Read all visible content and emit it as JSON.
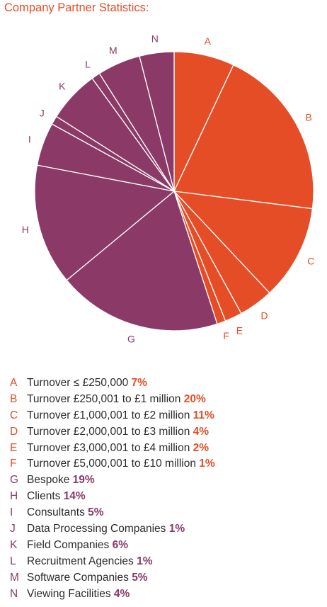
{
  "title": "Company Partner Statistics:",
  "colors": {
    "orange": "#e54d26",
    "purple": "#8b3a68"
  },
  "chart_data": {
    "type": "pie",
    "title": "Company Partner Statistics:",
    "slices": [
      {
        "letter": "A",
        "label": "Turnover ≤ £250,000",
        "value": 7,
        "pct_label": "7%",
        "group": "orange"
      },
      {
        "letter": "B",
        "label": "Turnover £250,001 to £1 million",
        "value": 20,
        "pct_label": "20%",
        "group": "orange"
      },
      {
        "letter": "C",
        "label": "Turnover £1,000,001 to £2 million",
        "value": 11,
        "pct_label": "11%",
        "group": "orange"
      },
      {
        "letter": "D",
        "label": "Turnover £2,000,001 to £3 million",
        "value": 4,
        "pct_label": "4%",
        "group": "orange"
      },
      {
        "letter": "E",
        "label": "Turnover £3,000,001 to £4 million",
        "value": 2,
        "pct_label": "2%",
        "group": "orange"
      },
      {
        "letter": "F",
        "label": "Turnover £5,000,001 to £10 million",
        "value": 1,
        "pct_label": "1%",
        "group": "orange"
      },
      {
        "letter": "G",
        "label": "Bespoke",
        "value": 19,
        "pct_label": "19%",
        "group": "purple"
      },
      {
        "letter": "H",
        "label": "Clients",
        "value": 14,
        "pct_label": "14%",
        "group": "purple"
      },
      {
        "letter": "I",
        "label": "Consultants",
        "value": 5,
        "pct_label": "5%",
        "group": "purple"
      },
      {
        "letter": "J",
        "label": "Data Processing Companies",
        "value": 1,
        "pct_label": "1%",
        "group": "purple"
      },
      {
        "letter": "K",
        "label": "Field Companies",
        "value": 6,
        "pct_label": "6%",
        "group": "purple"
      },
      {
        "letter": "L",
        "label": "Recruitment Agencies",
        "value": 1,
        "pct_label": "1%",
        "group": "purple"
      },
      {
        "letter": "M",
        "label": "Software Companies",
        "value": 5,
        "pct_label": "5%",
        "group": "purple"
      },
      {
        "letter": "N",
        "label": "Viewing Facilities",
        "value": 4,
        "pct_label": "4%",
        "group": "purple"
      }
    ]
  }
}
